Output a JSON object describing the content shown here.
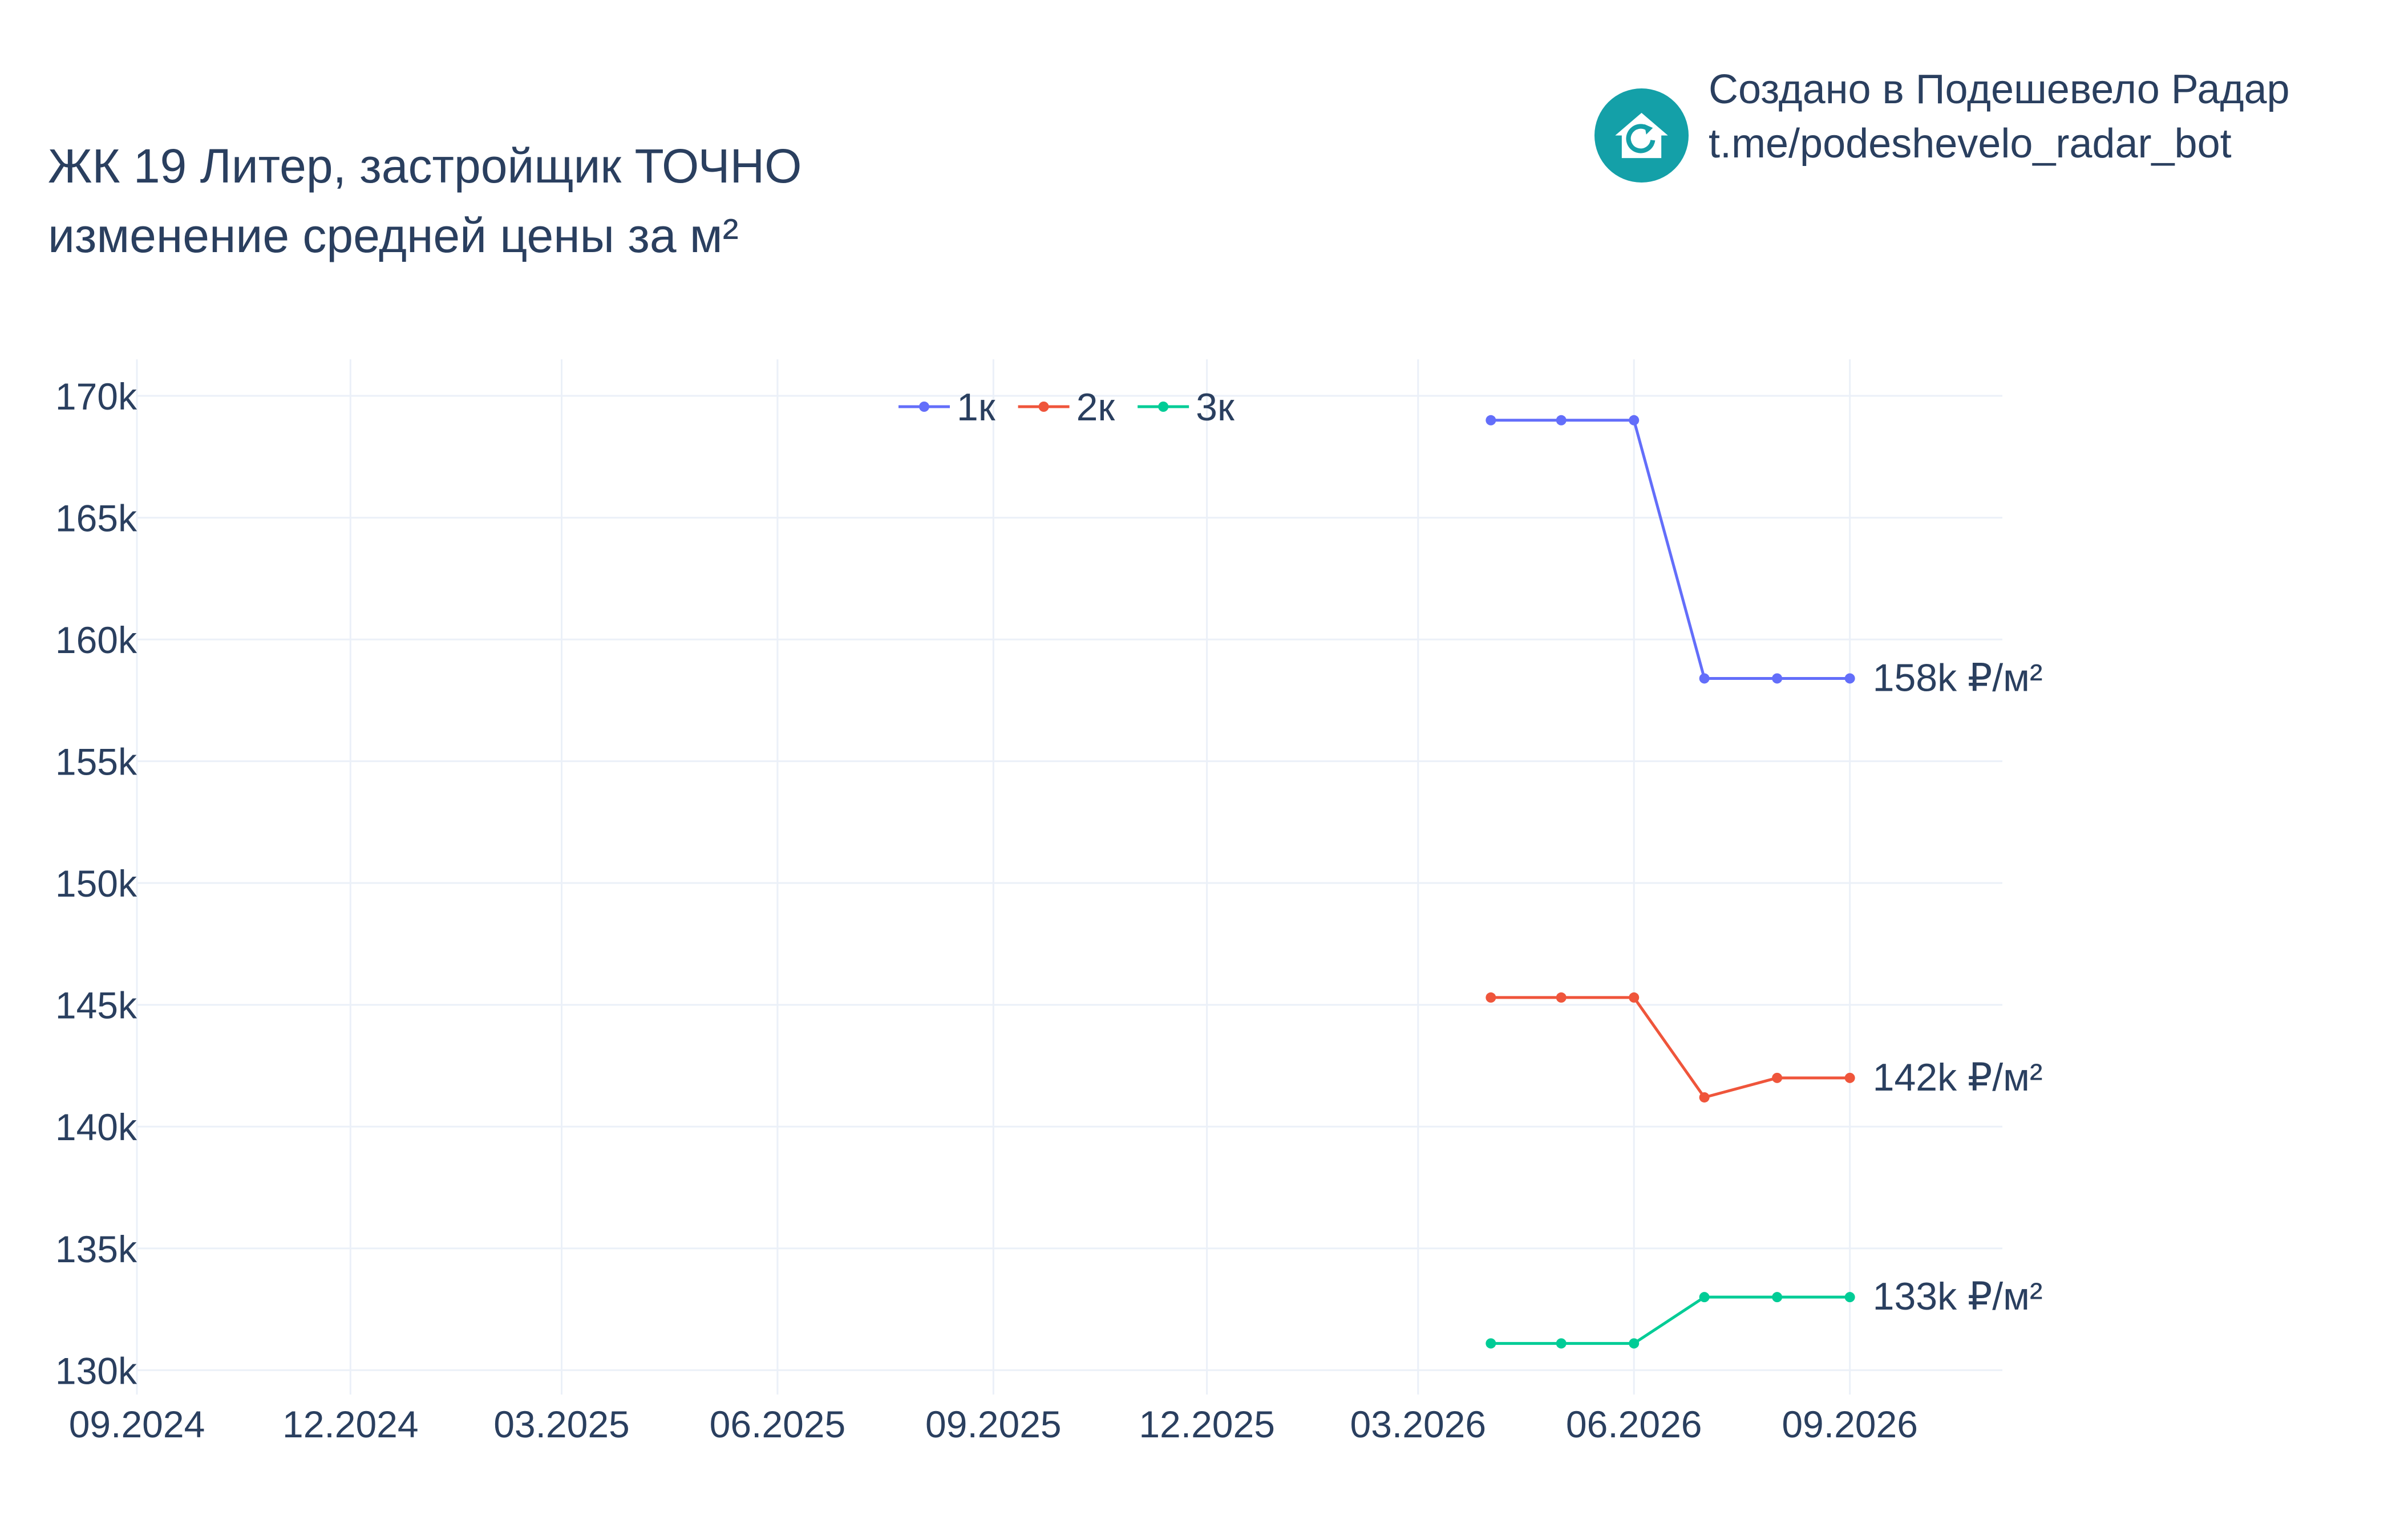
{
  "title": {
    "line1": "ЖК 19 Литер, застройщик ТОЧНО",
    "line2": "изменение средней цены за м²"
  },
  "credit": {
    "line1": "Создано в Подешевело Радар",
    "line2": "t.me/podeshevelo_radar_bot",
    "logo_icon": "house-refresh-icon",
    "logo_color": "#14a0a8"
  },
  "chart_data": {
    "type": "line",
    "x_ticks": [
      "09.2024",
      "12.2024",
      "03.2025",
      "06.2025",
      "09.2025",
      "12.2025",
      "03.2026",
      "06.2026",
      "09.2026"
    ],
    "x_range": [
      "2024-09-01",
      "2026-11-05"
    ],
    "y_ticks": [
      "130k",
      "135k",
      "140k",
      "145k",
      "150k",
      "155k",
      "160k",
      "165k",
      "170k"
    ],
    "y_range": [
      129000,
      171500
    ],
    "grid": true,
    "legend_position": "top-center",
    "series": [
      {
        "name": "1к",
        "color": "#636efa",
        "x": [
          "2026-04-01",
          "2026-05-01",
          "2026-06-01",
          "2026-07-01",
          "2026-08-01",
          "2026-09-01"
        ],
        "y": [
          169000,
          169000,
          169000,
          158400,
          158400,
          158400
        ],
        "end_label": "158k ₽/м²"
      },
      {
        "name": "2к",
        "color": "#ef553b",
        "x": [
          "2026-04-01",
          "2026-05-01",
          "2026-06-01",
          "2026-07-01",
          "2026-08-01",
          "2026-09-01"
        ],
        "y": [
          145300,
          145300,
          145300,
          141200,
          142000,
          142000
        ],
        "end_label": "142k ₽/м²"
      },
      {
        "name": "3к",
        "color": "#00cc96",
        "x": [
          "2026-04-01",
          "2026-05-01",
          "2026-06-01",
          "2026-07-01",
          "2026-08-01",
          "2026-09-01"
        ],
        "y": [
          131100,
          131100,
          131100,
          133000,
          133000,
          133000
        ],
        "end_label": "133k ₽/м²"
      }
    ]
  }
}
